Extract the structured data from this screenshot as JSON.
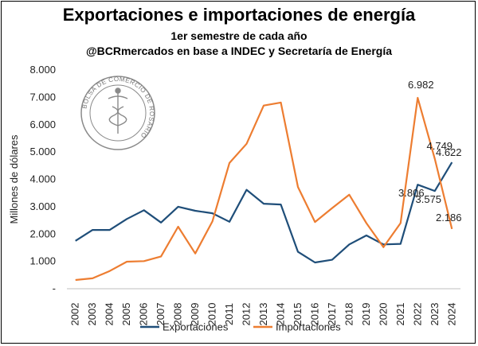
{
  "header": {
    "title": "Exportaciones e importaciones de energía",
    "subtitle1": "1er semestre de cada año",
    "subtitle2": "@BCRmercados en base a INDEC y Secretaría de Energía"
  },
  "logo": {
    "text": "BOLSA DE COMERCIO DE ROSARIO",
    "color": "#7a7a7a"
  },
  "chart_data": {
    "type": "line",
    "x": [
      "2002",
      "2003",
      "2004",
      "2005",
      "2006",
      "2007",
      "2008",
      "2009",
      "2010",
      "2011",
      "2012",
      "2013",
      "2014",
      "2015",
      "2016",
      "2017",
      "2018",
      "2019",
      "2020",
      "2021",
      "2022",
      "2023",
      "2024"
    ],
    "ylabel": "Millones de dólares",
    "ylim": [
      0,
      8000
    ],
    "yticks": [
      0,
      1000,
      2000,
      3000,
      4000,
      5000,
      6000,
      7000,
      8000
    ],
    "ytick_labels": [
      "-",
      "1.000",
      "2.000",
      "3.000",
      "4.000",
      "5.000",
      "6.000",
      "7.000",
      "8.000"
    ],
    "grid": false,
    "legend_position": "bottom",
    "series": [
      {
        "name": "Exportaciones",
        "color": "#1f4e79",
        "values": [
          1750,
          2150,
          2150,
          2550,
          2870,
          2420,
          3000,
          2850,
          2760,
          2450,
          3620,
          3110,
          3080,
          1350,
          960,
          1060,
          1620,
          1950,
          1620,
          1640,
          3806,
          3575,
          4622
        ]
      },
      {
        "name": "Importaciones",
        "color": "#ed7d31",
        "values": [
          320,
          380,
          650,
          990,
          1010,
          1180,
          2270,
          1290,
          2460,
          4600,
          5300,
          6700,
          6810,
          3720,
          2440,
          2950,
          3440,
          2400,
          1520,
          2400,
          6982,
          4749,
          2186
        ]
      }
    ],
    "data_labels": [
      {
        "series": 1,
        "index": 20,
        "text": "6.982"
      },
      {
        "series": 1,
        "index": 21,
        "text": "4.749"
      },
      {
        "series": 0,
        "index": 22,
        "text": "4.622"
      },
      {
        "series": 0,
        "index": 20,
        "text": "3.806"
      },
      {
        "series": 0,
        "index": 21,
        "text": "3.575"
      },
      {
        "series": 1,
        "index": 22,
        "text": "2.186"
      }
    ]
  }
}
